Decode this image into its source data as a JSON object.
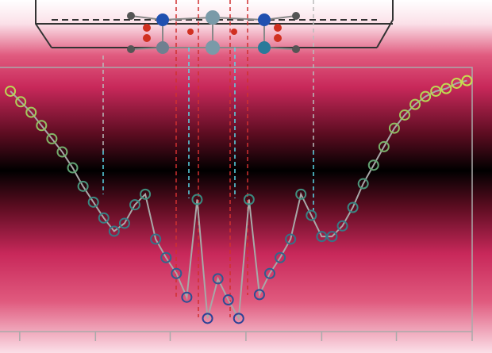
{
  "chart_data": {
    "type": "line",
    "x": [
      1,
      2,
      3,
      4,
      5,
      6,
      7,
      8,
      9,
      10,
      11,
      12,
      13,
      14,
      15,
      16,
      17,
      18,
      19,
      20,
      21,
      22,
      23,
      24,
      25,
      26,
      27,
      28,
      29,
      30,
      31,
      32,
      33,
      34,
      35,
      36,
      37,
      38,
      39,
      40,
      41,
      42,
      43,
      44,
      45
    ],
    "series": [
      {
        "values": [
          0.91,
          0.87,
          0.83,
          0.78,
          0.73,
          0.68,
          0.62,
          0.55,
          0.49,
          0.43,
          0.38,
          0.41,
          0.48,
          0.52,
          0.35,
          0.28,
          0.22,
          0.13,
          0.5,
          0.05,
          0.2,
          0.12,
          0.05,
          0.5,
          0.14,
          0.22,
          0.28,
          0.35,
          0.52,
          0.44,
          0.36,
          0.36,
          0.4,
          0.47,
          0.56,
          0.63,
          0.7,
          0.77,
          0.82,
          0.86,
          0.89,
          0.91,
          0.92,
          0.94,
          0.95
        ],
        "color": "#a8a8a8"
      }
    ],
    "colormap": [
      "#2a3a9a",
      "#3a8a80",
      "#d8e84a"
    ],
    "xlim": [
      0,
      45.5
    ],
    "ylim": [
      0,
      1
    ],
    "xticks": [
      1.9,
      9.2,
      16.4,
      23.7,
      31,
      38.2,
      45.5
    ]
  }
}
